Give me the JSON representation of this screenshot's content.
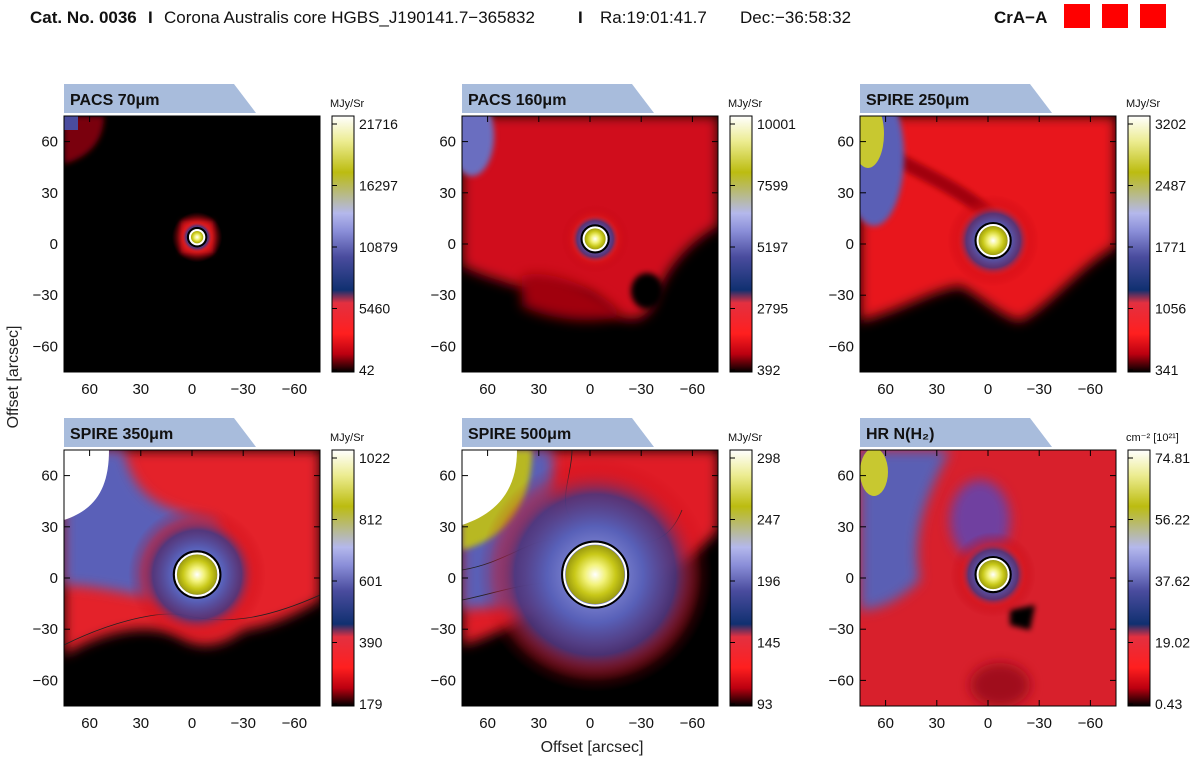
{
  "header": {
    "cat_label": "Cat. No. 0036",
    "sep1": "I",
    "core_name": "Corona Australis core HGBS_J190141.7−365832",
    "sep2": "I",
    "ra": "Ra:19:01:41.7",
    "dec": "Dec:−36:58:32",
    "region": "CrA−A",
    "region_color": "#ff0000",
    "markers": 3
  },
  "axes": {
    "xlabel": "Offset [arcsec]",
    "ylabel": "Offset [arcsec]",
    "xticks": [
      60,
      30,
      0,
      -30,
      -60
    ],
    "yticks": [
      60,
      30,
      0,
      -30,
      -60
    ],
    "xlim": [
      75,
      -75
    ],
    "ylim": [
      -75,
      75
    ]
  },
  "chart_data": [
    {
      "type": "heatmap",
      "title": "PACS 70μm",
      "unit": "MJy/Sr",
      "colorbar_ticks": [
        "21716",
        "16297",
        "10879",
        "5460",
        "42"
      ],
      "beam_arcsec": 8.4,
      "source_offset": [
        -3,
        4
      ]
    },
    {
      "type": "heatmap",
      "title": "PACS 160μm",
      "unit": "MJy/Sr",
      "colorbar_ticks": [
        "10001",
        "7599",
        "5197",
        "2795",
        "392"
      ],
      "beam_arcsec": 13.5,
      "source_offset": [
        -3,
        3
      ]
    },
    {
      "type": "heatmap",
      "title": "SPIRE 250μm",
      "unit": "MJy/Sr",
      "colorbar_ticks": [
        "3202",
        "2487",
        "1771",
        "1056",
        "341"
      ],
      "beam_arcsec": 18.2,
      "source_offset": [
        -3,
        2
      ]
    },
    {
      "type": "heatmap",
      "title": "SPIRE 350μm",
      "unit": "MJy/Sr",
      "colorbar_ticks": [
        "1022",
        "812",
        "601",
        "390",
        "179"
      ],
      "beam_arcsec": 24.9,
      "source_offset": [
        -3,
        2
      ]
    },
    {
      "type": "heatmap",
      "title": "SPIRE 500μm",
      "unit": "MJy/Sr",
      "colorbar_ticks": [
        "298",
        "247",
        "196",
        "145",
        "93"
      ],
      "beam_arcsec": 36.3,
      "source_offset": [
        -3,
        2
      ]
    },
    {
      "type": "heatmap",
      "title": "HR N(H₂)",
      "unit": "cm⁻² [10²¹]",
      "colorbar_ticks": [
        "74.81",
        "56.22",
        "37.62",
        "19.02",
        "0.43"
      ],
      "beam_arcsec": 18.2,
      "source_offset": [
        -3,
        2
      ]
    }
  ]
}
